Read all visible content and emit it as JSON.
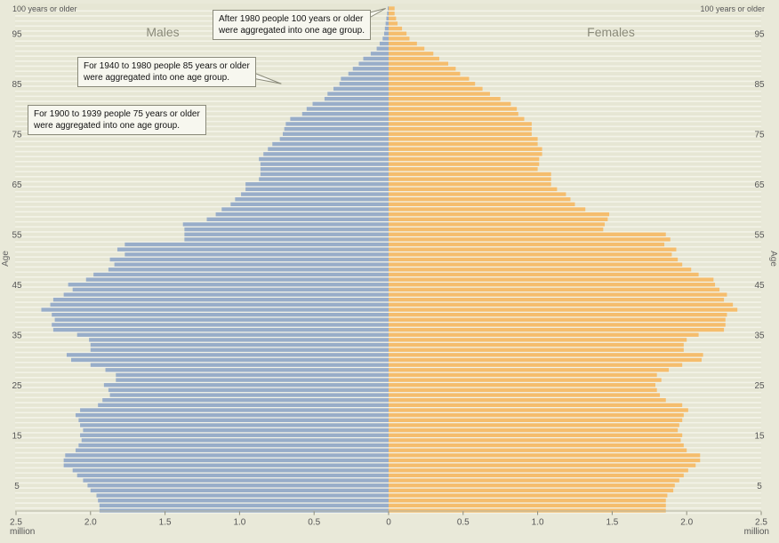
{
  "chart_data": {
    "type": "bar",
    "orientation": "horizontal",
    "layout": "population-pyramid",
    "grid": true,
    "left_label": "Males",
    "right_label": "Females",
    "ylabel": "Age",
    "xunit": "million",
    "xlim": [
      -2.5,
      2.5
    ],
    "ylim": [
      0,
      100
    ],
    "top_label": "100 years or older",
    "x_ticks": [
      -2.5,
      -2.0,
      -1.5,
      -1.0,
      -0.5,
      0,
      0.5,
      1.0,
      1.5,
      2.0,
      2.5
    ],
    "x_tick_labels": [
      "2.5",
      "2.0",
      "1.5",
      "1.0",
      "0.5",
      "0",
      "0.5",
      "1.0",
      "1.5",
      "2.0",
      "2.5"
    ],
    "y_ticks": [
      5,
      15,
      25,
      35,
      45,
      55,
      65,
      75,
      85,
      95
    ],
    "y_tick_labels": [
      "5",
      "15",
      "25",
      "35",
      "45",
      "55",
      "65",
      "75",
      "85",
      "95"
    ],
    "ages": [
      0,
      1,
      2,
      3,
      4,
      5,
      6,
      7,
      8,
      9,
      10,
      11,
      12,
      13,
      14,
      15,
      16,
      17,
      18,
      19,
      20,
      21,
      22,
      23,
      24,
      25,
      26,
      27,
      28,
      29,
      30,
      31,
      32,
      33,
      34,
      35,
      36,
      37,
      38,
      39,
      40,
      41,
      42,
      43,
      44,
      45,
      46,
      47,
      48,
      49,
      50,
      51,
      52,
      53,
      54,
      55,
      56,
      57,
      58,
      59,
      60,
      61,
      62,
      63,
      64,
      65,
      66,
      67,
      68,
      69,
      70,
      71,
      72,
      73,
      74,
      75,
      76,
      77,
      78,
      79,
      80,
      81,
      82,
      83,
      84,
      85,
      86,
      87,
      88,
      89,
      90,
      91,
      92,
      93,
      94,
      95,
      96,
      97,
      98,
      99,
      100
    ],
    "series": [
      {
        "name": "Males",
        "color": "#98adc9",
        "values": [
          1.94,
          1.94,
          1.95,
          1.96,
          2.0,
          2.02,
          2.05,
          2.09,
          2.12,
          2.18,
          2.18,
          2.17,
          2.1,
          2.08,
          2.06,
          2.07,
          2.05,
          2.07,
          2.08,
          2.1,
          2.07,
          1.95,
          1.92,
          1.87,
          1.88,
          1.91,
          1.83,
          1.83,
          1.9,
          2.0,
          2.13,
          2.16,
          2.0,
          2.0,
          2.01,
          2.09,
          2.25,
          2.26,
          2.24,
          2.26,
          2.33,
          2.27,
          2.25,
          2.18,
          2.12,
          2.15,
          2.03,
          1.98,
          1.88,
          1.84,
          1.87,
          1.77,
          1.82,
          1.77,
          1.37,
          1.37,
          1.37,
          1.38,
          1.22,
          1.16,
          1.12,
          1.06,
          1.03,
          0.99,
          0.96,
          0.96,
          0.87,
          0.86,
          0.86,
          0.86,
          0.87,
          0.84,
          0.81,
          0.78,
          0.73,
          0.71,
          0.7,
          0.69,
          0.66,
          0.58,
          0.55,
          0.51,
          0.43,
          0.41,
          0.37,
          0.33,
          0.32,
          0.27,
          0.24,
          0.2,
          0.17,
          0.12,
          0.08,
          0.06,
          0.04,
          0.03,
          0.025,
          0.02,
          0.015,
          0.01,
          0.006
        ]
      },
      {
        "name": "Females",
        "color": "#f5bd6d",
        "values": [
          1.86,
          1.86,
          1.86,
          1.87,
          1.91,
          1.92,
          1.95,
          1.98,
          2.01,
          2.06,
          2.09,
          2.09,
          2.0,
          1.98,
          1.96,
          1.97,
          1.94,
          1.95,
          1.97,
          1.98,
          2.01,
          1.97,
          1.86,
          1.82,
          1.8,
          1.79,
          1.83,
          1.8,
          1.88,
          1.97,
          2.1,
          2.11,
          1.98,
          1.98,
          2.0,
          2.08,
          2.25,
          2.26,
          2.26,
          2.27,
          2.34,
          2.31,
          2.25,
          2.27,
          2.22,
          2.19,
          2.18,
          2.08,
          2.03,
          1.97,
          1.94,
          1.9,
          1.93,
          1.85,
          1.89,
          1.86,
          1.44,
          1.45,
          1.47,
          1.48,
          1.32,
          1.25,
          1.22,
          1.19,
          1.13,
          1.09,
          1.09,
          1.09,
          1.0,
          1.01,
          1.01,
          1.03,
          1.03,
          1.0,
          1.0,
          0.96,
          0.96,
          0.96,
          0.91,
          0.87,
          0.86,
          0.82,
          0.75,
          0.68,
          0.63,
          0.58,
          0.54,
          0.48,
          0.45,
          0.4,
          0.34,
          0.3,
          0.24,
          0.19,
          0.14,
          0.12,
          0.09,
          0.06,
          0.05,
          0.04,
          0.04
        ]
      }
    ],
    "annotations": [
      {
        "id": "note-1980",
        "lines": [
          "After 1980 people 100 years or older",
          "were aggregated into one age group."
        ],
        "target_age": 100
      },
      {
        "id": "note-1940",
        "lines": [
          "For 1940 to 1980 people 85 years or older",
          "were aggregated into one age group."
        ],
        "target_age": 85
      },
      {
        "id": "note-1900",
        "lines": [
          "For 1900 to 1939 people 75 years or older",
          "were aggregated into one age group."
        ],
        "target_age": 75
      }
    ]
  }
}
